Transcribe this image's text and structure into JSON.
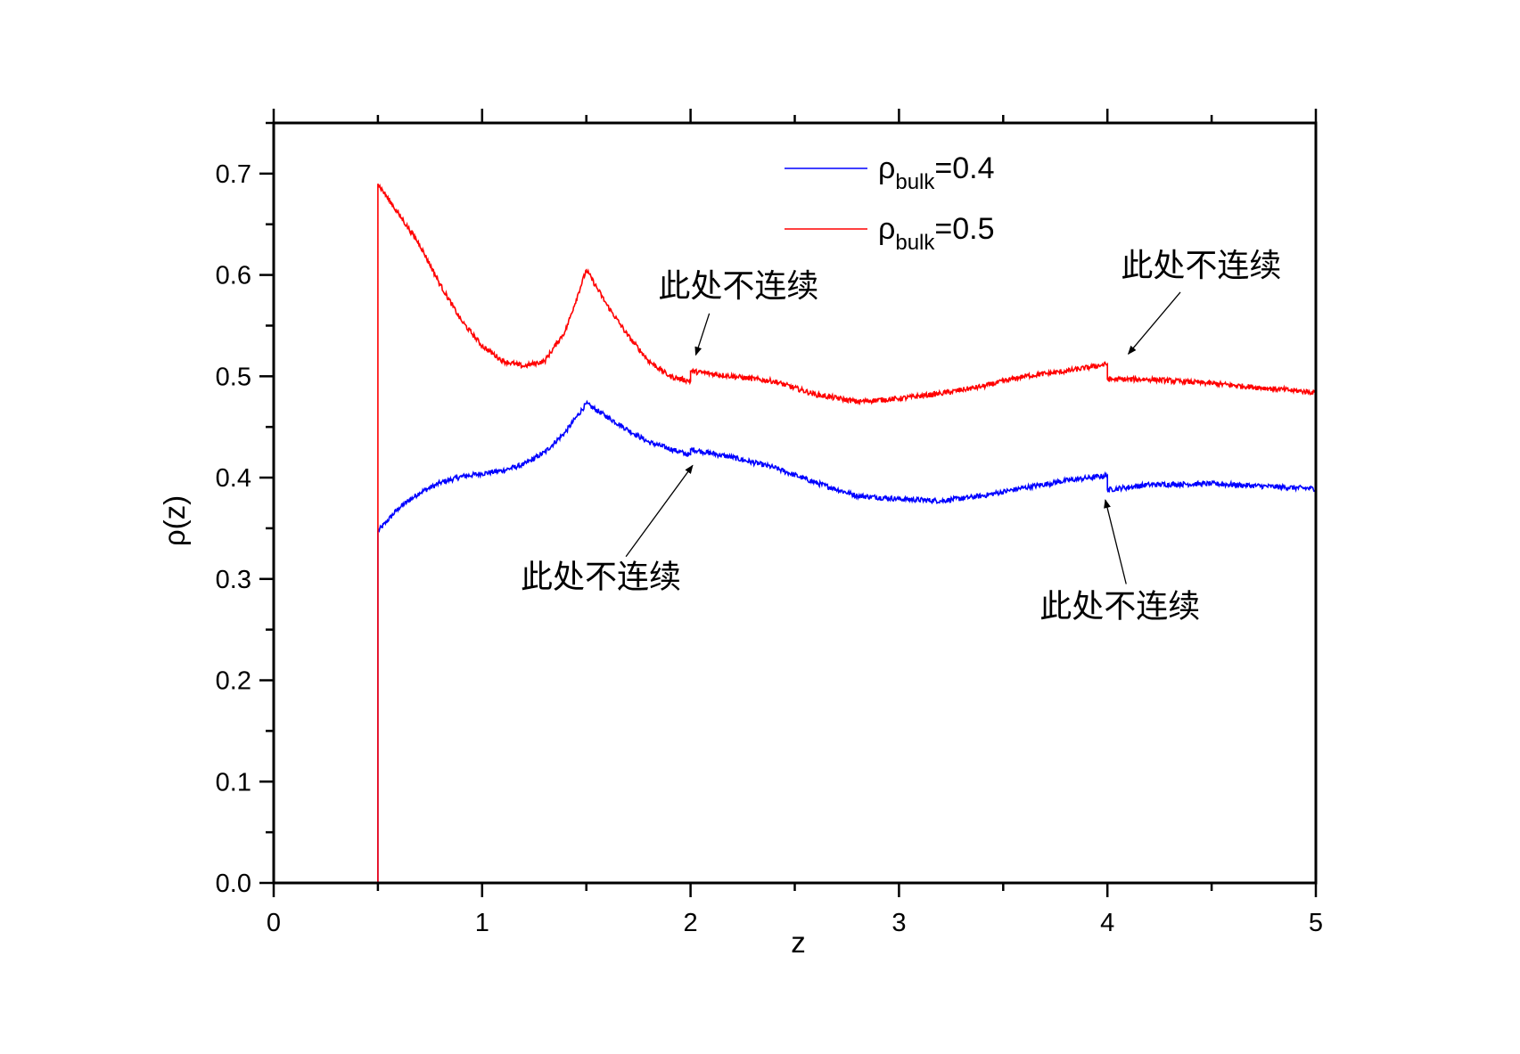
{
  "chart_data": {
    "type": "line",
    "title": "",
    "xlabel": "z",
    "ylabel": "ρ(z)",
    "xlim": [
      0,
      5
    ],
    "ylim": [
      0,
      0.75
    ],
    "xticks": [
      "0",
      "1",
      "2",
      "3",
      "4",
      "5"
    ],
    "yticks": [
      "0.0",
      "0.1",
      "0.2",
      "0.3",
      "0.4",
      "0.5",
      "0.6",
      "0.7"
    ],
    "grid": false,
    "legend": {
      "placement": "top-center",
      "entries": [
        {
          "symbol": "ρ",
          "subscript": "bulk",
          "value": "=0.4",
          "color": "#0000ff"
        },
        {
          "symbol": "ρ",
          "subscript": "bulk",
          "value": "=0.5",
          "color": "#ff0000"
        }
      ]
    },
    "series": [
      {
        "name": "ρbulk=0.4",
        "color": "#0000ff",
        "points": [
          [
            0,
            0
          ],
          [
            0.5,
            0
          ],
          [
            0.5,
            0.347
          ],
          [
            0.6,
            0.37
          ],
          [
            0.7,
            0.385
          ],
          [
            0.8,
            0.395
          ],
          [
            0.9,
            0.401
          ],
          [
            1.0,
            0.404
          ],
          [
            1.1,
            0.407
          ],
          [
            1.2,
            0.413
          ],
          [
            1.3,
            0.425
          ],
          [
            1.4,
            0.445
          ],
          [
            1.5,
            0.473
          ],
          [
            1.6,
            0.46
          ],
          [
            1.7,
            0.447
          ],
          [
            1.8,
            0.435
          ],
          [
            2.0,
            0.422
          ],
          [
            2.0,
            0.428
          ],
          [
            2.2,
            0.42
          ],
          [
            2.4,
            0.41
          ],
          [
            2.6,
            0.395
          ],
          [
            2.8,
            0.382
          ],
          [
            3.0,
            0.379
          ],
          [
            3.2,
            0.377
          ],
          [
            3.4,
            0.382
          ],
          [
            3.6,
            0.39
          ],
          [
            3.8,
            0.397
          ],
          [
            4.0,
            0.402
          ],
          [
            4.0,
            0.388
          ],
          [
            4.2,
            0.393
          ],
          [
            4.5,
            0.394
          ],
          [
            5.0,
            0.389
          ]
        ]
      },
      {
        "name": "ρbulk=0.5",
        "color": "#ff0000",
        "points": [
          [
            0,
            0
          ],
          [
            0.5,
            0
          ],
          [
            0.5,
            0.69
          ],
          [
            0.6,
            0.66
          ],
          [
            0.7,
            0.63
          ],
          [
            0.8,
            0.59
          ],
          [
            0.9,
            0.555
          ],
          [
            1.0,
            0.53
          ],
          [
            1.1,
            0.515
          ],
          [
            1.2,
            0.51
          ],
          [
            1.3,
            0.515
          ],
          [
            1.4,
            0.545
          ],
          [
            1.5,
            0.605
          ],
          [
            1.6,
            0.57
          ],
          [
            1.7,
            0.54
          ],
          [
            1.8,
            0.515
          ],
          [
            1.9,
            0.5
          ],
          [
            2.0,
            0.495
          ],
          [
            2.0,
            0.505
          ],
          [
            2.2,
            0.5
          ],
          [
            2.4,
            0.495
          ],
          [
            2.6,
            0.482
          ],
          [
            2.8,
            0.475
          ],
          [
            3.0,
            0.478
          ],
          [
            3.2,
            0.483
          ],
          [
            3.4,
            0.49
          ],
          [
            3.6,
            0.5
          ],
          [
            3.8,
            0.505
          ],
          [
            4.0,
            0.512
          ],
          [
            4.0,
            0.497
          ],
          [
            4.2,
            0.497
          ],
          [
            4.5,
            0.493
          ],
          [
            5.0,
            0.484
          ]
        ]
      }
    ],
    "annotations": [
      {
        "text": "此处不连续",
        "x": 2.23,
        "y": 0.59,
        "arrow_from": [
          2.09,
          0.562
        ],
        "arrow_to": [
          2.025,
          0.521
        ]
      },
      {
        "text": "此处不连续",
        "x": 4.45,
        "y": 0.61,
        "arrow_from": [
          4.35,
          0.583
        ],
        "arrow_to": [
          4.1,
          0.522
        ]
      },
      {
        "text": "此处不连续",
        "x": 1.57,
        "y": 0.303,
        "arrow_from": [
          1.69,
          0.322
        ],
        "arrow_to": [
          2.01,
          0.412
        ]
      },
      {
        "text": "此处不连续",
        "x": 4.06,
        "y": 0.274,
        "arrow_from": [
          4.09,
          0.295
        ],
        "arrow_to": [
          3.99,
          0.378
        ]
      }
    ]
  }
}
